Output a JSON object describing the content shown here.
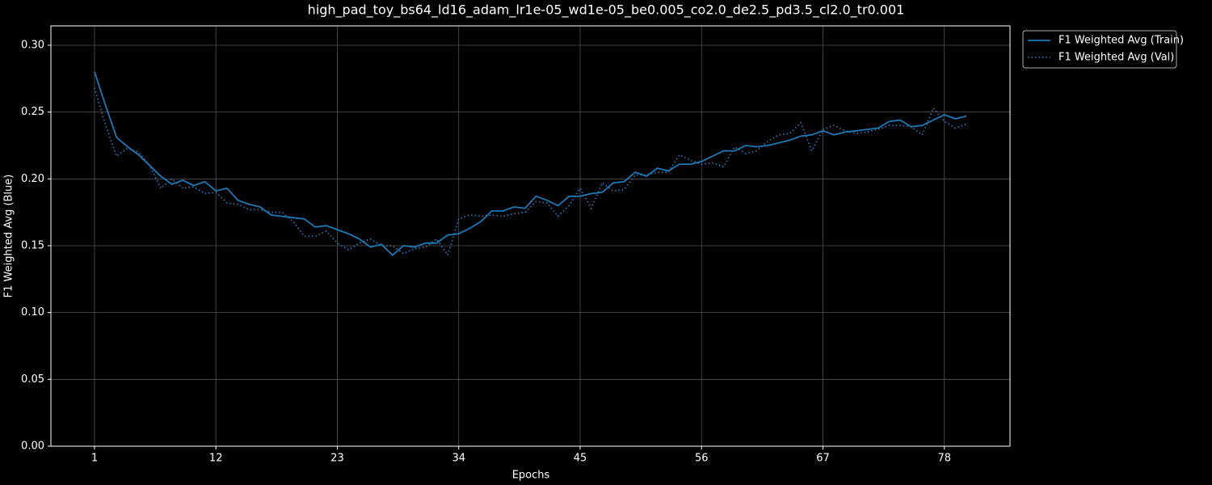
{
  "chart_data": {
    "type": "line",
    "title": "high_pad_toy_bs64_ld16_adam_lr1e-05_wd1e-05_be0.005_co2.0_de2.5_pd3.5_cl2.0_tr0.001",
    "x_label": "Epochs",
    "y_label": "F1 Weighted Avg (Blue)",
    "x": [
      1,
      2,
      3,
      4,
      5,
      6,
      7,
      8,
      9,
      10,
      11,
      12,
      13,
      14,
      15,
      16,
      17,
      18,
      19,
      20,
      21,
      22,
      23,
      24,
      25,
      26,
      27,
      28,
      29,
      30,
      31,
      32,
      33,
      34,
      35,
      36,
      37,
      38,
      39,
      40,
      41,
      42,
      43,
      44,
      45,
      46,
      47,
      48,
      49,
      50,
      51,
      52,
      53,
      54,
      55,
      56,
      57,
      58,
      59,
      60,
      61,
      62,
      63,
      64,
      65,
      66,
      67,
      68,
      69,
      70,
      71,
      72,
      73,
      74,
      75,
      76,
      77,
      78,
      79,
      80
    ],
    "series": [
      {
        "name": "F1 Weighted Avg (Train)",
        "color": "#1f77b4",
        "linestyle": "solid",
        "values": [
          0.28,
          0.255,
          0.231,
          0.224,
          0.218,
          0.21,
          0.202,
          0.196,
          0.199,
          0.195,
          0.198,
          0.191,
          0.193,
          0.184,
          0.181,
          0.179,
          0.173,
          0.172,
          0.171,
          0.17,
          0.164,
          0.165,
          0.162,
          0.159,
          0.155,
          0.149,
          0.151,
          0.143,
          0.15,
          0.149,
          0.152,
          0.152,
          0.158,
          0.159,
          0.163,
          0.168,
          0.176,
          0.176,
          0.179,
          0.178,
          0.187,
          0.184,
          0.18,
          0.187,
          0.187,
          0.189,
          0.19,
          0.197,
          0.198,
          0.205,
          0.202,
          0.208,
          0.206,
          0.211,
          0.211,
          0.213,
          0.217,
          0.221,
          0.221,
          0.225,
          0.224,
          0.225,
          0.227,
          0.229,
          0.232,
          0.233,
          0.236,
          0.233,
          0.235,
          0.236,
          0.237,
          0.238,
          0.243,
          0.244,
          0.239,
          0.24,
          0.244,
          0.248,
          0.245,
          0.247
        ]
      },
      {
        "name": "F1 Weighted Avg (Val)",
        "color": "#1f77b4",
        "linestyle": "dotted",
        "values": [
          0.268,
          0.24,
          0.217,
          0.223,
          0.22,
          0.21,
          0.193,
          0.2,
          0.193,
          0.194,
          0.189,
          0.19,
          0.182,
          0.181,
          0.177,
          0.177,
          0.175,
          0.175,
          0.168,
          0.157,
          0.157,
          0.161,
          0.152,
          0.147,
          0.152,
          0.155,
          0.15,
          0.15,
          0.144,
          0.148,
          0.149,
          0.155,
          0.143,
          0.17,
          0.173,
          0.172,
          0.173,
          0.172,
          0.174,
          0.175,
          0.183,
          0.182,
          0.172,
          0.18,
          0.193,
          0.178,
          0.197,
          0.191,
          0.192,
          0.203,
          0.203,
          0.205,
          0.205,
          0.218,
          0.214,
          0.211,
          0.212,
          0.209,
          0.224,
          0.219,
          0.221,
          0.228,
          0.233,
          0.234,
          0.242,
          0.221,
          0.237,
          0.24,
          0.236,
          0.234,
          0.235,
          0.237,
          0.24,
          0.24,
          0.239,
          0.233,
          0.253,
          0.243,
          0.238,
          0.241
        ]
      }
    ],
    "xlim": [
      -2.95,
      83.95
    ],
    "xticks": [
      1,
      12,
      23,
      34,
      45,
      56,
      67,
      78
    ],
    "ylim": [
      0,
      0.3145
    ],
    "yticks": [
      {
        "value": 0,
        "label": "0.00"
      },
      {
        "value": 0.05,
        "label": "0.05"
      },
      {
        "value": 0.1,
        "label": "0.10"
      },
      {
        "value": 0.15,
        "label": "0.15"
      },
      {
        "value": 0.2,
        "label": "0.20"
      },
      {
        "value": 0.25,
        "label": "0.25"
      },
      {
        "value": 0.3,
        "label": "0.30"
      }
    ],
    "grid": true,
    "legend": "outside-upper-right"
  }
}
